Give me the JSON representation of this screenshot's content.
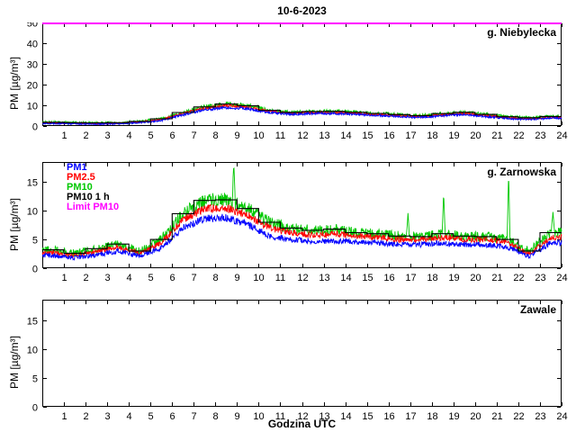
{
  "title": "10-6-2023",
  "chart_data": [
    {
      "type": "line",
      "station": "g. Niebylecka",
      "ylabel": "PM [µg/m³]",
      "xlim": [
        0,
        24
      ],
      "ylim": [
        0,
        50
      ],
      "yticks": [
        0,
        10,
        20,
        30,
        40,
        50
      ],
      "xticks": [
        1,
        2,
        3,
        4,
        5,
        6,
        7,
        8,
        9,
        10,
        11,
        12,
        13,
        14,
        15,
        16,
        17,
        18,
        19,
        20,
        21,
        22,
        23,
        24
      ],
      "limit_line": {
        "label": "Limit PM10",
        "value": 50,
        "color": "#ff00ff"
      },
      "series": [
        {
          "name": "PM10",
          "color": "#00c800",
          "style": "noisy",
          "noise": 1.1,
          "hourly": [
            1.8,
            1.6,
            1.5,
            1.6,
            2.2,
            3.5,
            6.5,
            9.2,
            10.6,
            9.8,
            7.6,
            6.6,
            7.0,
            7.1,
            6.6,
            6.1,
            5.5,
            5.0,
            6.0,
            6.6,
            5.6,
            4.5,
            4.0,
            4.6
          ]
        },
        {
          "name": "PM2.5",
          "color": "#ff0000",
          "style": "noisy",
          "noise": 0.7,
          "hourly": [
            1.5,
            1.3,
            1.2,
            1.3,
            1.9,
            3.1,
            6.0,
            8.6,
            9.8,
            9.2,
            7.1,
            6.1,
            6.5,
            6.6,
            6.1,
            5.6,
            5.0,
            4.5,
            5.5,
            6.1,
            5.1,
            4.0,
            3.5,
            4.1
          ]
        },
        {
          "name": "PM1",
          "color": "#0000ff",
          "style": "noisy",
          "noise": 0.7,
          "hourly": [
            1.2,
            1.0,
            1.0,
            1.1,
            1.6,
            2.6,
            5.4,
            7.8,
            8.9,
            8.4,
            6.5,
            5.6,
            6.0,
            6.0,
            5.6,
            5.1,
            4.6,
            4.1,
            5.0,
            5.6,
            4.6,
            3.6,
            3.1,
            3.7
          ]
        },
        {
          "name": "PM10 1 h",
          "color": "#000000",
          "style": "step",
          "hourly": [
            1.8,
            1.6,
            1.5,
            1.6,
            2.2,
            3.5,
            6.5,
            9.2,
            10.6,
            9.8,
            7.6,
            6.6,
            7.0,
            7.1,
            6.6,
            6.1,
            5.5,
            5.0,
            6.0,
            6.6,
            5.6,
            4.5,
            4.0,
            4.6
          ]
        }
      ]
    },
    {
      "type": "line",
      "station": "g. Zarnowska",
      "ylabel": "PM [µg/m³]",
      "xlim": [
        0,
        24
      ],
      "ylim": [
        0,
        18.5
      ],
      "yticks": [
        0,
        5,
        10,
        15
      ],
      "xticks": [
        1,
        2,
        3,
        4,
        5,
        6,
        7,
        8,
        9,
        10,
        11,
        12,
        13,
        14,
        15,
        16,
        17,
        18,
        19,
        20,
        21,
        22,
        23,
        24
      ],
      "legend": [
        {
          "label": "PM1",
          "color": "#0000ff"
        },
        {
          "label": "PM2.5",
          "color": "#ff0000"
        },
        {
          "label": "PM10",
          "color": "#00c800"
        },
        {
          "label": "PM10 1 h",
          "color": "#000000"
        },
        {
          "label": "Limit PM10",
          "color": "#ff00ff"
        }
      ],
      "series": [
        {
          "name": "PM10",
          "color": "#00c800",
          "style": "noisy",
          "noise": 1.1,
          "hourly": [
            3.2,
            2.6,
            3.4,
            4.2,
            3.0,
            5.0,
            9.5,
            11.8,
            11.9,
            10.4,
            8.0,
            7.0,
            6.6,
            6.8,
            6.2,
            6.0,
            5.6,
            5.5,
            6.0,
            5.6,
            5.5,
            5.0,
            3.0,
            6.2
          ],
          "spikes": [
            {
              "x": 8.85,
              "y": 18.4
            },
            {
              "x": 16.9,
              "y": 9.6
            },
            {
              "x": 18.55,
              "y": 13.2
            },
            {
              "x": 21.55,
              "y": 16.8
            },
            {
              "x": 23.6,
              "y": 9.8
            }
          ]
        },
        {
          "name": "PM2.5",
          "color": "#ff0000",
          "style": "noisy",
          "noise": 0.7,
          "hourly": [
            2.7,
            2.2,
            2.9,
            3.7,
            2.6,
            4.4,
            8.4,
            10.4,
            10.5,
            9.2,
            7.0,
            6.2,
            5.8,
            6.0,
            5.6,
            5.4,
            5.0,
            5.0,
            5.4,
            5.0,
            5.0,
            4.5,
            2.4,
            5.4
          ]
        },
        {
          "name": "PM1",
          "color": "#0000ff",
          "style": "noisy",
          "noise": 0.7,
          "hourly": [
            2.2,
            1.8,
            2.3,
            3.0,
            2.1,
            3.6,
            7.0,
            8.6,
            8.8,
            7.6,
            5.6,
            5.0,
            4.7,
            4.8,
            4.6,
            4.4,
            4.1,
            4.1,
            4.4,
            4.1,
            4.1,
            3.7,
            2.0,
            4.4
          ]
        },
        {
          "name": "PM10 1 h",
          "color": "#000000",
          "style": "step",
          "hourly": [
            3.2,
            2.6,
            3.4,
            4.2,
            3.0,
            5.0,
            9.5,
            11.8,
            11.9,
            10.4,
            8.0,
            7.0,
            6.6,
            6.8,
            6.2,
            6.0,
            5.6,
            5.5,
            6.0,
            5.6,
            5.5,
            5.0,
            3.0,
            6.2
          ]
        }
      ]
    },
    {
      "type": "line",
      "station": "Zawale",
      "ylabel": "PM [µg/m³]",
      "xlabel": "Godzina UTC",
      "xlim": [
        0,
        24
      ],
      "ylim": [
        0,
        18.5
      ],
      "yticks": [
        0,
        5,
        10,
        15
      ],
      "xticks": [
        1,
        2,
        3,
        4,
        5,
        6,
        7,
        8,
        9,
        10,
        11,
        12,
        13,
        14,
        15,
        16,
        17,
        18,
        19,
        20,
        21,
        22,
        23,
        24
      ],
      "series": []
    }
  ]
}
